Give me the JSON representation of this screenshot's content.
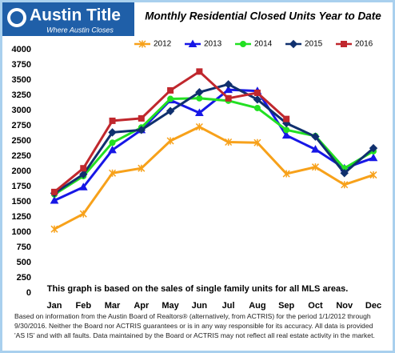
{
  "brand": {
    "name": "Austin Title",
    "tagline": "Where Austin Closes"
  },
  "chart_data": {
    "type": "line",
    "title": "Monthly Residential Closed Units Year to Date",
    "categories": [
      "Jan",
      "Feb",
      "Mar",
      "Apr",
      "May",
      "Jun",
      "Jul",
      "Aug",
      "Sep",
      "Oct",
      "Nov",
      "Dec"
    ],
    "series": [
      {
        "name": "2012",
        "color": "#f7a11a",
        "marker": "star",
        "values": [
          1050,
          1300,
          1970,
          2050,
          2500,
          2730,
          2480,
          2470,
          1960,
          2070,
          1780,
          1940
        ]
      },
      {
        "name": "2013",
        "color": "#1717e6",
        "marker": "triangle",
        "values": [
          1520,
          1740,
          2350,
          2680,
          3170,
          2960,
          3340,
          3320,
          2590,
          2360,
          2050,
          2220
        ]
      },
      {
        "name": "2014",
        "color": "#22e022",
        "marker": "circle",
        "values": [
          1620,
          1920,
          2470,
          2720,
          3190,
          3200,
          3160,
          3040,
          2680,
          2580,
          2050,
          2330
        ]
      },
      {
        "name": "2015",
        "color": "#10306e",
        "marker": "diamond",
        "values": [
          1640,
          1950,
          2640,
          2680,
          2990,
          3300,
          3430,
          3180,
          2790,
          2570,
          1970,
          2380
        ]
      },
      {
        "name": "2016",
        "color": "#c0272d",
        "marker": "square",
        "values": [
          1660,
          2050,
          2830,
          2870,
          3330,
          3640,
          3200,
          3290,
          2860,
          null,
          null,
          null
        ]
      }
    ],
    "ylim": [
      0,
      4000
    ],
    "yticks": [
      0,
      250,
      500,
      750,
      1000,
      1250,
      1500,
      1750,
      2000,
      2250,
      2500,
      2750,
      3000,
      3250,
      3500,
      3750,
      4000
    ],
    "grid": false,
    "legend": "top",
    "note": "This graph is based on the sales of single family units for all MLS areas.",
    "source": "Based on information from the Austin Board of Realtors® (alternatively, from ACTRIS) for the period 1/1/2012 through 9/30/2016.  Neither the Board nor ACTRIS guarantees or is in any way responsible for its accuracy.  All data is provided 'AS IS' and with all faults.  Data maintained by the Board or ACTRIS may not reflect all real estate activity in the market."
  }
}
